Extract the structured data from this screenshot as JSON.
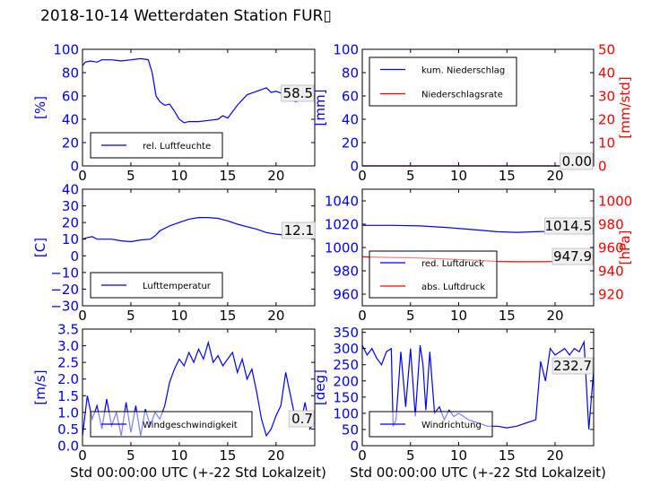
{
  "figure": {
    "title": "2018-10-14 Wetterdaten Station FUR▯",
    "xlabel": "Std 00:00:00 UTC (+-22 Std Lokalzeit)"
  },
  "colors": {
    "left_axis": "#0000ff",
    "right_axis": "#ff0000",
    "series_blue": "#0000ff",
    "series_red": "#ff0000"
  },
  "chart_data": [
    {
      "id": "humidity",
      "type": "line",
      "ylabel": "[%]",
      "ylim": [
        0,
        100
      ],
      "yticks": [
        "0",
        "20",
        "40",
        "60",
        "80",
        "100"
      ],
      "xlim": [
        0,
        24
      ],
      "xticks": [
        "0",
        "5",
        "10",
        "15",
        "20"
      ],
      "legend": {
        "placement": "lower-left",
        "entries": [
          {
            "name": "rel. Luftfeuchte",
            "color": "#0000ff"
          }
        ]
      },
      "annotations": [
        {
          "text": "58.5"
        }
      ],
      "series": [
        {
          "name": "rel. Luftfeuchte",
          "axis": "left",
          "color": "#0000ff",
          "x": [
            0,
            0.3,
            0.8,
            1.5,
            2,
            3,
            4,
            5,
            6,
            6.8,
            7.2,
            7.6,
            8,
            8.5,
            9,
            9.5,
            10,
            10.5,
            11,
            12,
            13,
            14,
            14.5,
            15,
            16,
            17,
            18,
            19,
            19.5,
            20,
            21,
            22,
            23,
            24
          ],
          "y": [
            86,
            89,
            90,
            89,
            91,
            91,
            90,
            91,
            92,
            91,
            80,
            60,
            55,
            52,
            53,
            47,
            40,
            37,
            38,
            38,
            39,
            40,
            43,
            41,
            52,
            61,
            64,
            67,
            63,
            64,
            61,
            55,
            57,
            58.5
          ]
        }
      ]
    },
    {
      "id": "precip",
      "type": "line",
      "ylabel": "[mm]",
      "ylabel_right": "[mm/std]",
      "ylim": [
        0,
        100
      ],
      "ylim_right": [
        0,
        50
      ],
      "yticks": [
        "0",
        "20",
        "40",
        "60",
        "80",
        "100"
      ],
      "yticks_right": [
        "0",
        "10",
        "20",
        "30",
        "40",
        "50"
      ],
      "xlim": [
        0,
        24
      ],
      "xticks": [
        "0",
        "5",
        "10",
        "15",
        "20"
      ],
      "legend": {
        "placement": "top-left",
        "entries": [
          {
            "name": "kum. Niederschlag",
            "color": "#0000ff"
          },
          {
            "name": "Niederschlagsrate",
            "color": "#ff0000"
          }
        ]
      },
      "annotations": [
        {
          "text": "0.00"
        }
      ],
      "series": [
        {
          "name": "kum. Niederschlag",
          "axis": "left",
          "color": "#0000ff",
          "x": [
            0,
            24
          ],
          "y": [
            0,
            0
          ]
        },
        {
          "name": "Niederschlagsrate",
          "axis": "right",
          "color": "#ff0000",
          "x": [
            0,
            24
          ],
          "y": [
            0,
            0
          ]
        }
      ]
    },
    {
      "id": "temperature",
      "type": "line",
      "ylabel": "[C]",
      "ylim": [
        -30,
        40
      ],
      "yticks": [
        "−30",
        "−20",
        "−10",
        "0",
        "10",
        "20",
        "30",
        "40"
      ],
      "xlim": [
        0,
        24
      ],
      "xticks": [
        "0",
        "5",
        "10",
        "15",
        "20"
      ],
      "legend": {
        "placement": "lower-left",
        "entries": [
          {
            "name": "Lufttemperatur",
            "color": "#0000ff"
          }
        ]
      },
      "annotations": [
        {
          "text": "12.1"
        }
      ],
      "series": [
        {
          "name": "Lufttemperatur",
          "axis": "left",
          "color": "#0000ff",
          "x": [
            0,
            0.5,
            1,
            1.5,
            2,
            3,
            4,
            5,
            6,
            7,
            7.5,
            8,
            9,
            10,
            11,
            12,
            13,
            14,
            15,
            16,
            17,
            18,
            19,
            20,
            21,
            22,
            23,
            24
          ],
          "y": [
            10,
            11,
            11.5,
            10,
            10,
            10,
            9,
            8.5,
            9.5,
            10,
            12,
            15,
            18,
            20,
            22,
            23,
            23,
            22.5,
            21,
            19,
            17.5,
            16,
            14,
            13,
            12.5,
            12,
            12.3,
            12.1
          ]
        }
      ]
    },
    {
      "id": "pressure",
      "type": "line",
      "ylabel": "",
      "ylabel_right": "[hPa]",
      "ylim": [
        950,
        1050
      ],
      "ylim_right": [
        910,
        1010
      ],
      "yticks": [
        "960",
        "980",
        "1000",
        "1020",
        "1040"
      ],
      "yticks_right": [
        "920",
        "940",
        "960",
        "980",
        "1000"
      ],
      "xlim": [
        0,
        24
      ],
      "xticks": [
        "0",
        "5",
        "10",
        "15",
        "20"
      ],
      "legend": {
        "placement": "lower-left",
        "entries": [
          {
            "name": "red. Luftdruck",
            "color": "#0000ff"
          },
          {
            "name": "abs. Luftdruck",
            "color": "#ff0000"
          }
        ]
      },
      "annotations": [
        {
          "text": "1014.5"
        },
        {
          "text": "947.9"
        }
      ],
      "series": [
        {
          "name": "red. Luftdruck",
          "axis": "left",
          "color": "#0000ff",
          "x": [
            0,
            3,
            6,
            9,
            12,
            14,
            16,
            18,
            20,
            22,
            24
          ],
          "y": [
            1019,
            1019,
            1018.5,
            1017,
            1015,
            1013.5,
            1013,
            1013.5,
            1014,
            1014.5,
            1014.5
          ]
        },
        {
          "name": "abs. Luftdruck",
          "axis": "right",
          "color": "#ff0000",
          "x": [
            0,
            3,
            6,
            9,
            12,
            14,
            16,
            18,
            20,
            22,
            24
          ],
          "y": [
            952,
            951.5,
            951,
            950,
            949,
            948,
            947.8,
            947.8,
            947.9,
            947.9,
            947.9
          ]
        }
      ]
    },
    {
      "id": "wind_speed",
      "type": "line",
      "ylabel": "[m/s]",
      "ylim": [
        0,
        3.5
      ],
      "yticks": [
        "0.0",
        "0.5",
        "1.0",
        "1.5",
        "2.0",
        "2.5",
        "3.0",
        "3.5"
      ],
      "xlim": [
        0,
        24
      ],
      "xticks": [
        "0",
        "5",
        "10",
        "15",
        "20"
      ],
      "legend": {
        "placement": "lower-left",
        "entries": [
          {
            "name": "Windgeschwindigkeit",
            "color": "#0000ff"
          }
        ]
      },
      "annotations": [
        {
          "text": "0.7"
        }
      ],
      "series": [
        {
          "name": "Windgeschwindigkeit",
          "axis": "left",
          "color": "#0000ff",
          "x": [
            0,
            0.5,
            1,
            1.5,
            2,
            2.5,
            3,
            3.5,
            4,
            4.5,
            5,
            5.5,
            6,
            6.5,
            7,
            7.5,
            8,
            8.5,
            9,
            9.5,
            10,
            10.5,
            11,
            11.5,
            12,
            12.5,
            13,
            13.5,
            14,
            14.5,
            15,
            15.5,
            16,
            16.5,
            17,
            17.5,
            18,
            18.5,
            19,
            19.5,
            20,
            20.5,
            21,
            21.5,
            22,
            22.5,
            23,
            23.5,
            24
          ],
          "y": [
            0.3,
            1.5,
            0.8,
            1.2,
            0.5,
            1.4,
            0.6,
            1.0,
            0.3,
            1.3,
            0.4,
            1.2,
            0.3,
            1.1,
            0.6,
            1.0,
            0.8,
            1.2,
            1.9,
            2.3,
            2.6,
            2.4,
            2.8,
            2.5,
            2.9,
            2.6,
            3.1,
            2.5,
            2.7,
            2.4,
            2.6,
            2.8,
            2.2,
            2.6,
            2.0,
            2.3,
            1.6,
            0.8,
            0.3,
            0.5,
            0.9,
            1.2,
            2.2,
            1.5,
            0.8,
            0.6,
            1.3,
            0.5,
            0.7
          ]
        }
      ]
    },
    {
      "id": "wind_dir",
      "type": "line",
      "ylabel": "[deg]",
      "ylim": [
        0,
        360
      ],
      "yticks": [
        "0",
        "50",
        "100",
        "150",
        "200",
        "250",
        "300",
        "350"
      ],
      "xlim": [
        0,
        24
      ],
      "xticks": [
        "0",
        "5",
        "10",
        "15",
        "20"
      ],
      "legend": {
        "placement": "lower-left",
        "entries": [
          {
            "name": "Windrichtung",
            "color": "#0000ff"
          }
        ]
      },
      "annotations": [
        {
          "text": "232.7"
        }
      ],
      "series": [
        {
          "name": "Windrichtung",
          "axis": "left",
          "color": "#0000ff",
          "x": [
            0,
            0.5,
            1,
            1.5,
            2,
            2.5,
            3,
            3.2,
            3.5,
            4,
            4.5,
            5,
            5.5,
            6,
            6.3,
            6.6,
            7,
            7.5,
            8,
            8.5,
            9,
            9.5,
            10,
            11,
            12,
            13,
            14,
            15,
            16,
            17,
            18,
            18.5,
            19,
            19.5,
            20,
            20.5,
            21,
            21.5,
            22,
            22.5,
            23,
            23.5,
            24
          ],
          "y": [
            310,
            280,
            300,
            270,
            250,
            290,
            300,
            60,
            80,
            290,
            120,
            300,
            90,
            310,
            250,
            110,
            290,
            100,
            120,
            80,
            110,
            90,
            100,
            80,
            70,
            60,
            60,
            55,
            60,
            70,
            80,
            260,
            200,
            300,
            280,
            290,
            300,
            280,
            300,
            290,
            320,
            50,
            232.7
          ]
        }
      ]
    }
  ]
}
